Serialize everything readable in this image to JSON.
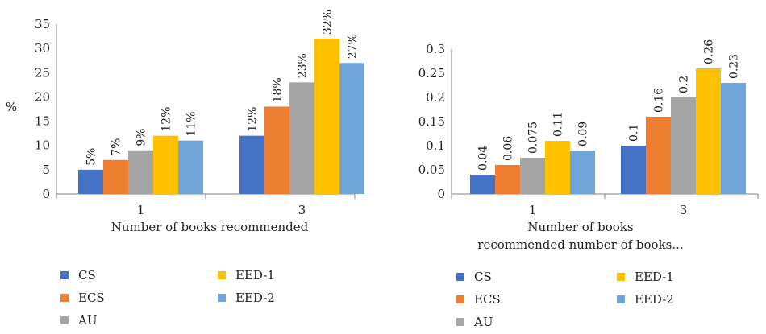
{
  "colors": {
    "CS": "#4472c4",
    "ECS": "#ed7d31",
    "AU": "#a5a5a5",
    "EED-1": "#ffc000",
    "EED-2": "#70a5d9"
  },
  "chart_data": [
    {
      "type": "bar",
      "categories": [
        "1",
        "3"
      ],
      "series": [
        {
          "name": "CS",
          "values": [
            5,
            12
          ],
          "labels": [
            "5%",
            "12%"
          ]
        },
        {
          "name": "ECS",
          "values": [
            7,
            18
          ],
          "labels": [
            "7%",
            "18%"
          ]
        },
        {
          "name": "AU",
          "values": [
            9,
            23
          ],
          "labels": [
            "9%",
            "23%"
          ]
        },
        {
          "name": "EED-1",
          "values": [
            12,
            32
          ],
          "labels": [
            "12%",
            "32%"
          ]
        },
        {
          "name": "EED-2",
          "values": [
            11,
            27
          ],
          "labels": [
            "11%",
            "27%"
          ]
        }
      ],
      "xlabel": "Number of books recommended",
      "ylabel": "%",
      "ylim": [
        0,
        35
      ],
      "yticks": [
        "0",
        "5",
        "10",
        "15",
        "20",
        "25",
        "30",
        "35"
      ],
      "legend": "bottom"
    },
    {
      "type": "bar",
      "categories": [
        "1",
        "3"
      ],
      "series": [
        {
          "name": "CS",
          "values": [
            0.04,
            0.1
          ],
          "labels": [
            "0.04",
            "0.1"
          ]
        },
        {
          "name": "ECS",
          "values": [
            0.06,
            0.16
          ],
          "labels": [
            "0.06",
            "0.16"
          ]
        },
        {
          "name": "AU",
          "values": [
            0.075,
            0.2
          ],
          "labels": [
            "0.075",
            "0.2"
          ]
        },
        {
          "name": "EED-1",
          "values": [
            0.11,
            0.26
          ],
          "labels": [
            "0.11",
            "0.26"
          ]
        },
        {
          "name": "EED-2",
          "values": [
            0.09,
            0.23
          ],
          "labels": [
            "0.09",
            "0.23"
          ]
        }
      ],
      "xlabel_lines": [
        "Number of books",
        "recommended number of books..."
      ],
      "ylim": [
        0,
        0.3
      ],
      "yticks": [
        "0",
        "0.05",
        "0.1",
        "0.15",
        "0.2",
        "0.25",
        "0.3"
      ],
      "legend": "bottom"
    }
  ]
}
